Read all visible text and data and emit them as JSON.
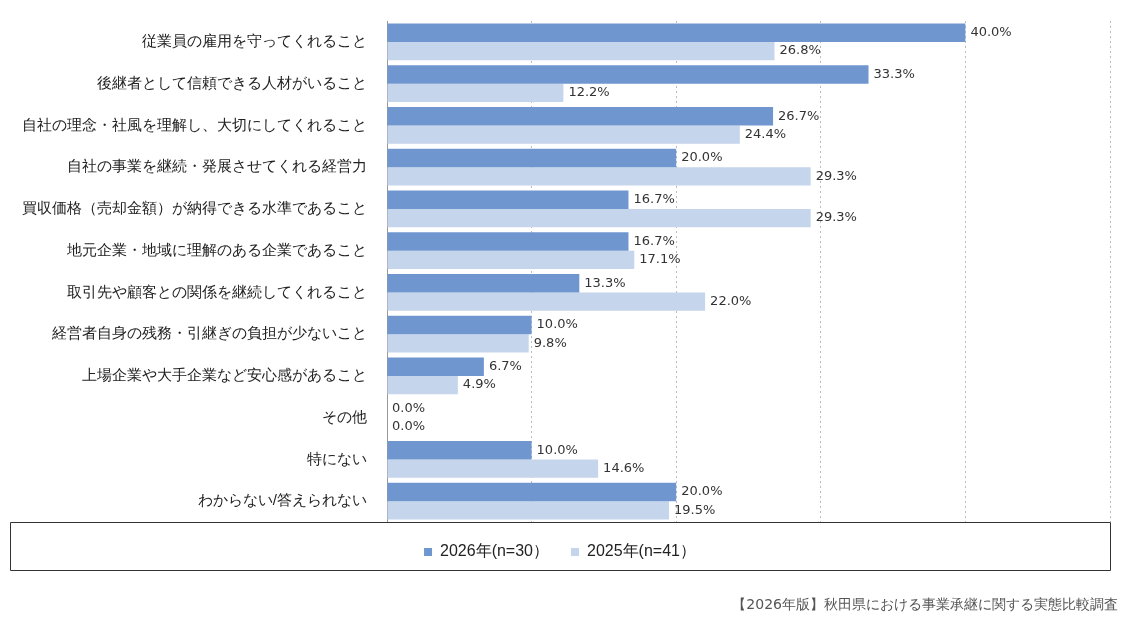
{
  "chart_data": {
    "type": "bar",
    "orientation": "horizontal",
    "categories": [
      "従業員の雇用を守ってくれること",
      "後継者として信頼できる人材がいること",
      "自社の理念・社風を理解し、大切にしてくれること",
      "自社の事業を継続・発展させてくれる経営力",
      "買収価格（売却金額）が納得できる水準であること",
      "地元企業・地域に理解のある企業であること",
      "取引先や顧客との関係を継続してくれること",
      "経営者自身の残務・引継ぎの負担が少ないこと",
      "上場企業や大手企業など安心感があること",
      "その他",
      "特にない",
      "わからない/答えられない"
    ],
    "series": [
      {
        "name": "2026年(n=30）",
        "color": "#7096d0",
        "values": [
          40.0,
          33.3,
          26.7,
          20.0,
          16.7,
          16.7,
          13.3,
          10.0,
          6.7,
          0.0,
          10.0,
          20.0
        ],
        "value_labels": [
          "40.0%",
          "33.3%",
          "26.7%",
          "20.0%",
          "16.7%",
          "16.7%",
          "13.3%",
          "10.0%",
          "6.7%",
          "0.0%",
          "10.0%",
          "20.0%"
        ]
      },
      {
        "name": "2025年(n=41）",
        "color": "#c5d5ec",
        "values": [
          26.8,
          12.2,
          24.4,
          29.3,
          29.3,
          17.1,
          22.0,
          9.8,
          4.9,
          0.0,
          14.6,
          19.5
        ],
        "value_labels": [
          "26.8%",
          "12.2%",
          "24.4%",
          "29.3%",
          "29.3%",
          "17.1%",
          "22.0%",
          "9.8%",
          "4.9%",
          "0.0%",
          "14.6%",
          "19.5%"
        ]
      }
    ],
    "xlim": [
      0,
      50
    ],
    "xticks": [
      {
        "value": 0,
        "label": null
      },
      {
        "value": 10,
        "label": null
      },
      {
        "value": 20,
        "label": null
      },
      {
        "value": 30,
        "label": null
      },
      {
        "value": 40,
        "label": null
      },
      {
        "value": 50,
        "label": null
      }
    ],
    "grid": "x",
    "tick_labels": "y",
    "legend": "bottom",
    "annotations": [
      "【2026年版】秋田県における事業承継に関する実態比較調査"
    ]
  }
}
